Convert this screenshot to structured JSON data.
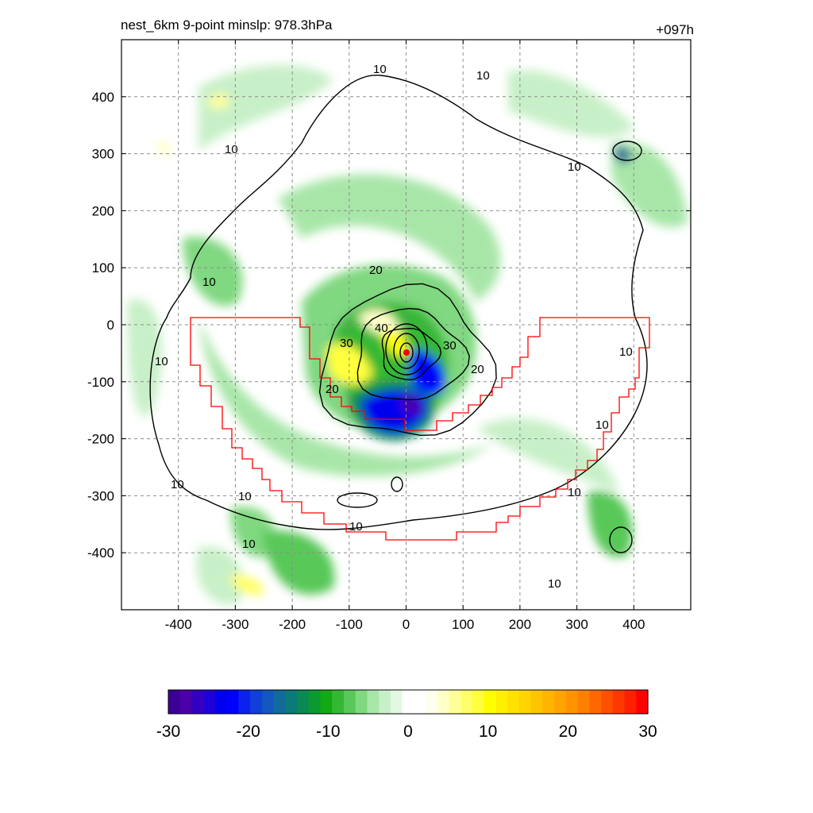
{
  "header": {
    "title_left": "nest_6km  9-point minslp: 978.3hPa",
    "title_right": "+097h"
  },
  "chart_data": {
    "type": "heatmap",
    "title": "nest_6km  9-point minslp: 978.3hPa",
    "time_label": "+097h",
    "xlim": [
      -500,
      500
    ],
    "ylim": [
      -500,
      500
    ],
    "x_ticks": [
      -400,
      -300,
      -200,
      -100,
      0,
      100,
      200,
      300,
      400
    ],
    "y_ticks": [
      400,
      300,
      200,
      100,
      0,
      -100,
      -200,
      -300,
      -400
    ],
    "x_tick_labels": [
      "-400",
      "-300",
      "-200",
      "-100",
      "0",
      "100",
      "200",
      "300",
      "400"
    ],
    "y_tick_labels": [
      "400",
      "300",
      "200",
      "100",
      "0",
      "-100",
      "-200",
      "-300",
      "-400"
    ],
    "grid": true,
    "storm_center": [
      0,
      -48
    ],
    "colorbar": {
      "min": -30,
      "max": 30,
      "ticks": [
        -30,
        -20,
        -10,
        0,
        10,
        20,
        30
      ],
      "tick_labels": [
        "-30",
        "-20",
        "-10",
        "0",
        "10",
        "20",
        "30"
      ],
      "colors": [
        "#3c0096",
        "#4b00aa",
        "#3400c0",
        "#1e00d8",
        "#0000ee",
        "#0000ff",
        "#0a22ee",
        "#1040d8",
        "#1456c0",
        "#106a9a",
        "#0c7a78",
        "#0a8a50",
        "#0a9a30",
        "#14a814",
        "#34b834",
        "#58c858",
        "#80d880",
        "#a8e6a8",
        "#c8f0c8",
        "#e2f8e2",
        "#ffffff",
        "#ffffff",
        "#fffff0",
        "#ffffc8",
        "#ffff9a",
        "#ffff6a",
        "#ffff3c",
        "#ffff00",
        "#fff000",
        "#ffe200",
        "#ffd400",
        "#ffc400",
        "#ffb400",
        "#ffa400",
        "#ff9400",
        "#ff8000",
        "#ff6800",
        "#ff5000",
        "#ff3800",
        "#ff2000",
        "#ff0000"
      ]
    },
    "contour_labels": [
      "10",
      "20",
      "30",
      "40"
    ],
    "contour_rings": [
      {
        "level": "20",
        "rx": 150,
        "ry": 130,
        "cx": 0,
        "cy": -70
      },
      {
        "level": "30",
        "rx": 95,
        "ry": 80,
        "cx": 5,
        "cy": -55
      },
      {
        "level": "40",
        "rx": 50,
        "ry": 45,
        "cx": 5,
        "cy": -50
      }
    ],
    "wind_shading_levels": [
      -30,
      -20,
      -10,
      0,
      10,
      20,
      30
    ]
  }
}
